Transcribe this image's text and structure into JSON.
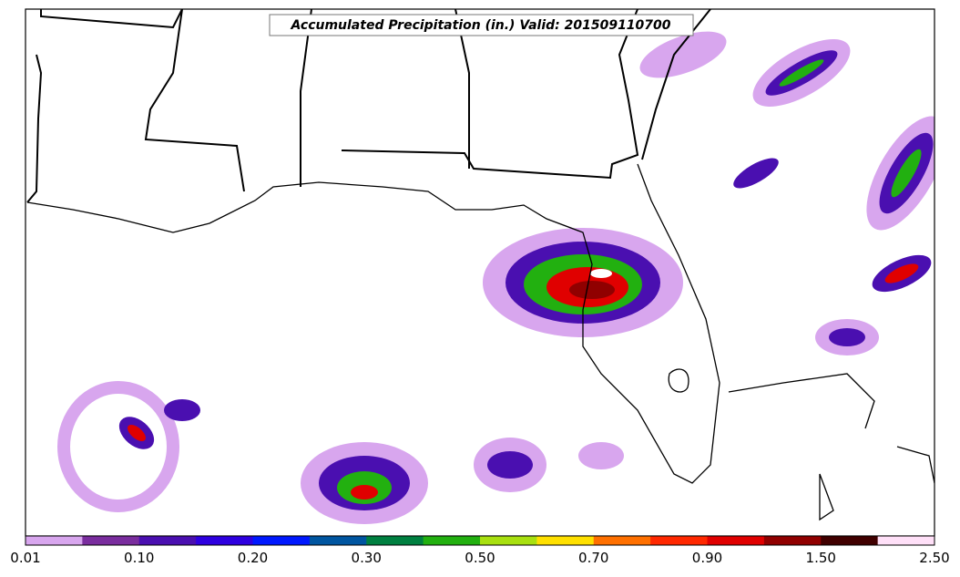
{
  "title": "Accumulated Precipitation (in.) Valid: 201509110700",
  "colorbar": {
    "labels": [
      "0.01",
      "0.10",
      "0.20",
      "0.30",
      "0.50",
      "0.70",
      "0.90",
      "1.50",
      "2.50"
    ]
  }
}
